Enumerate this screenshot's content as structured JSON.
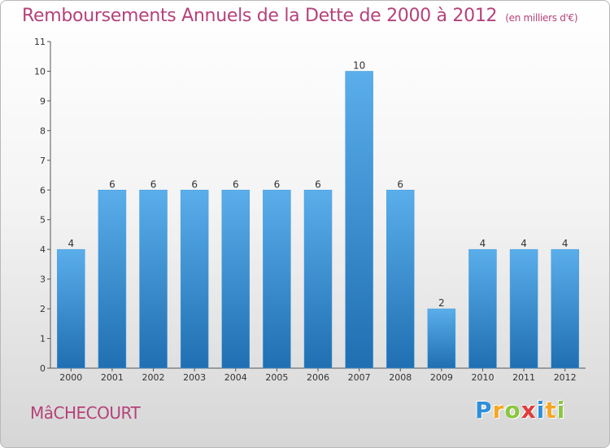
{
  "chart_data": {
    "type": "bar",
    "title": "Remboursements Annuels de la Dette de 2000 à 2012",
    "subtitle": "(en milliers d'€)",
    "categories": [
      "2000",
      "2001",
      "2002",
      "2003",
      "2004",
      "2005",
      "2006",
      "2007",
      "2008",
      "2009",
      "2010",
      "2011",
      "2012"
    ],
    "values": [
      4,
      6,
      6,
      6,
      6,
      6,
      6,
      10,
      6,
      2,
      4,
      4,
      4
    ],
    "ylim": [
      0,
      11
    ],
    "yticks": [
      0,
      1,
      2,
      3,
      4,
      5,
      6,
      7,
      8,
      9,
      10,
      11
    ],
    "xlabel": "",
    "ylabel": "",
    "grid": false
  },
  "commune": "MâCHECOURT",
  "logo": {
    "letters": [
      "P",
      "r",
      "o",
      "x",
      "i",
      "t",
      "i"
    ],
    "colors": [
      "#2e8fd8",
      "#f5a623",
      "#8cc63f",
      "#e23b3b",
      "#2e8fd8",
      "#f5a623",
      "#8cc63f"
    ]
  },
  "colors": {
    "accent": "#b5427a",
    "bar_light": "#5aaeea",
    "bar_dark": "#1f6fb2"
  }
}
